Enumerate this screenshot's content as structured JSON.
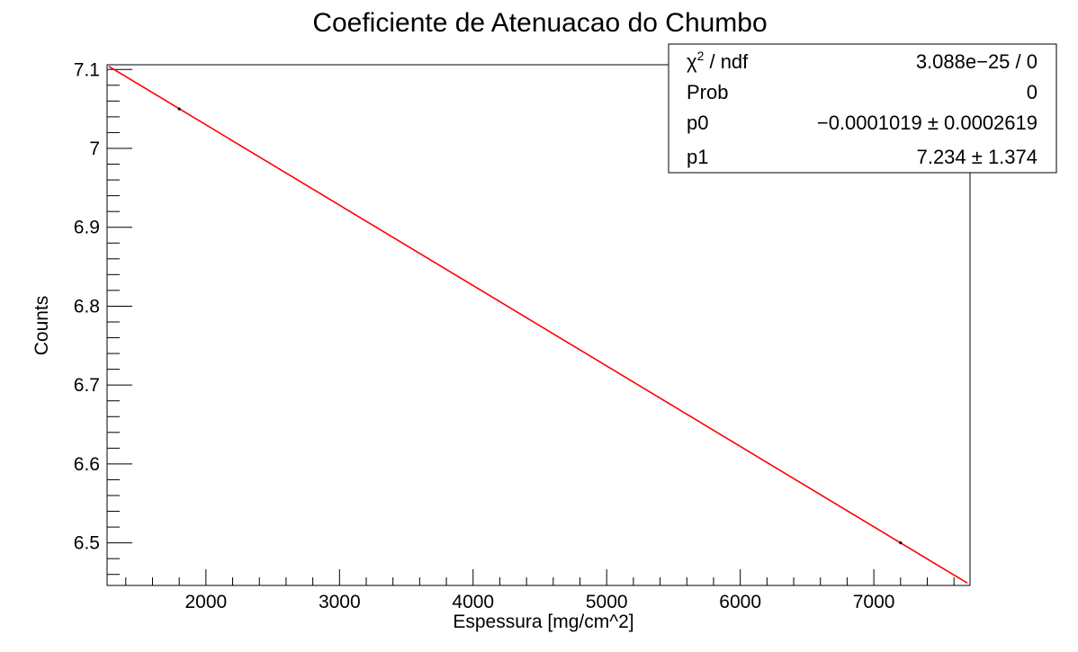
{
  "chart_data": {
    "type": "line",
    "title": "Coeficiente de Atenuacao do Chumbo",
    "xlabel": "Espessura [mg/cm^2]",
    "ylabel": "Counts",
    "xlim": [
      1260,
      7720
    ],
    "ylim": [
      6.446,
      7.106
    ],
    "x_ticks": [
      2000,
      3000,
      4000,
      5000,
      6000,
      7000
    ],
    "x_tick_labels": [
      "2000",
      "3000",
      "4000",
      "5000",
      "6000",
      "7000"
    ],
    "y_ticks": [
      6.5,
      6.6,
      6.7,
      6.8,
      6.9,
      7.0,
      7.1
    ],
    "y_tick_labels": [
      "6.5",
      "6.6",
      "6.7",
      "6.8",
      "6.9",
      "7",
      "7.1"
    ],
    "grid": false,
    "series": [
      {
        "color": "#ff0000",
        "x": [
          1273,
          7700
        ],
        "y": [
          7.104,
          6.449
        ]
      }
    ],
    "points": {
      "x": [
        1800,
        7200
      ],
      "y": [
        7.05,
        6.5
      ]
    },
    "stats_box": {
      "position": "top-right",
      "rows": [
        {
          "label_sym": "χ",
          "label_sup": "2",
          "label_rest": " / ndf",
          "value": "3.088e−25 / 0"
        },
        {
          "label": "Prob",
          "value": "0"
        },
        {
          "label": "p0",
          "value": "−0.0001019 ± 0.0002619"
        },
        {
          "label": "p1",
          "value": "7.234 ± 1.374"
        }
      ]
    }
  }
}
